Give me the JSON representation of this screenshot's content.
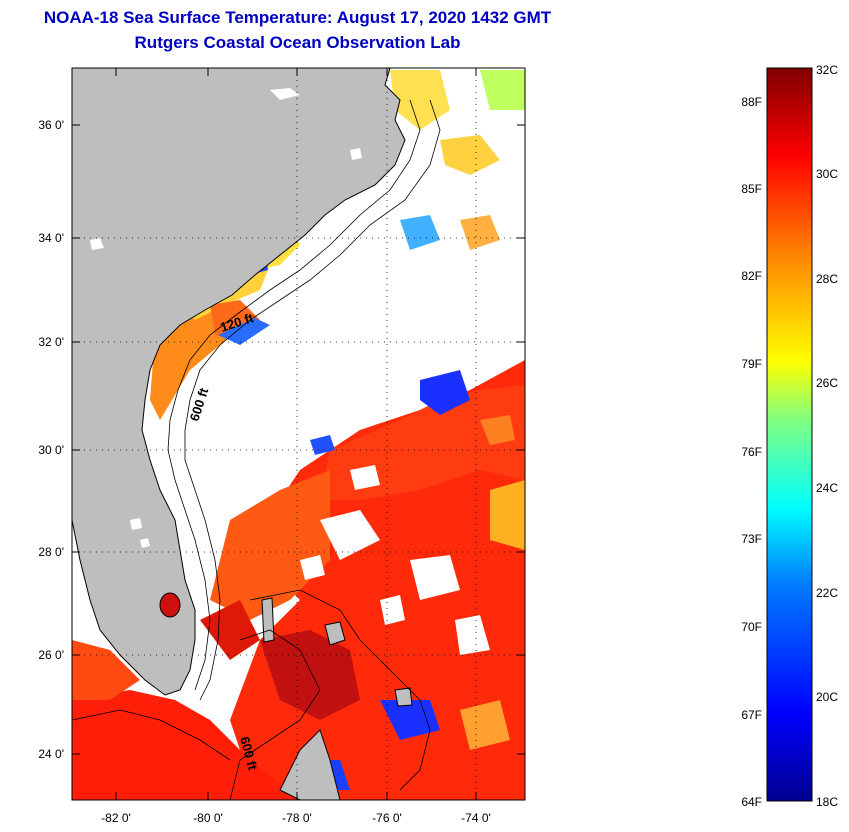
{
  "map": {
    "title": "NOAA-18 Sea Surface Temperature:  August 17, 2020 1432 GMT",
    "subtitle": "Rutgers Coastal Ocean Observation Lab",
    "lat_labels": [
      "36 0'",
      "34 0'",
      "32 0'",
      "30 0'",
      "28 0'",
      "26 0'",
      "24 0'"
    ],
    "lon_labels": [
      "-82 0'",
      "-80 0'",
      "-78 0'",
      "-76 0'",
      "-74 0'"
    ],
    "extent": {
      "lon_min": -83.0,
      "lon_max": -73.0,
      "lat_min": 23.0,
      "lat_max": 37.0
    },
    "contour_labels": [
      "120 ft",
      "600 ft",
      "600 ft"
    ],
    "land_color": "#bebebe"
  },
  "colorbar": {
    "fahrenheit_labels": [
      "88F",
      "85F",
      "82F",
      "79F",
      "76F",
      "73F",
      "70F",
      "67F",
      "64F"
    ],
    "celsius_labels": [
      "32C",
      "30C",
      "28C",
      "26C",
      "24C",
      "22C",
      "20C",
      "18C"
    ],
    "range_c": [
      18,
      32
    ],
    "colors": [
      "#00008f",
      "#0000ff",
      "#0080ff",
      "#00ffff",
      "#80ff80",
      "#ffff00",
      "#ff8000",
      "#ff0000",
      "#800000"
    ]
  }
}
